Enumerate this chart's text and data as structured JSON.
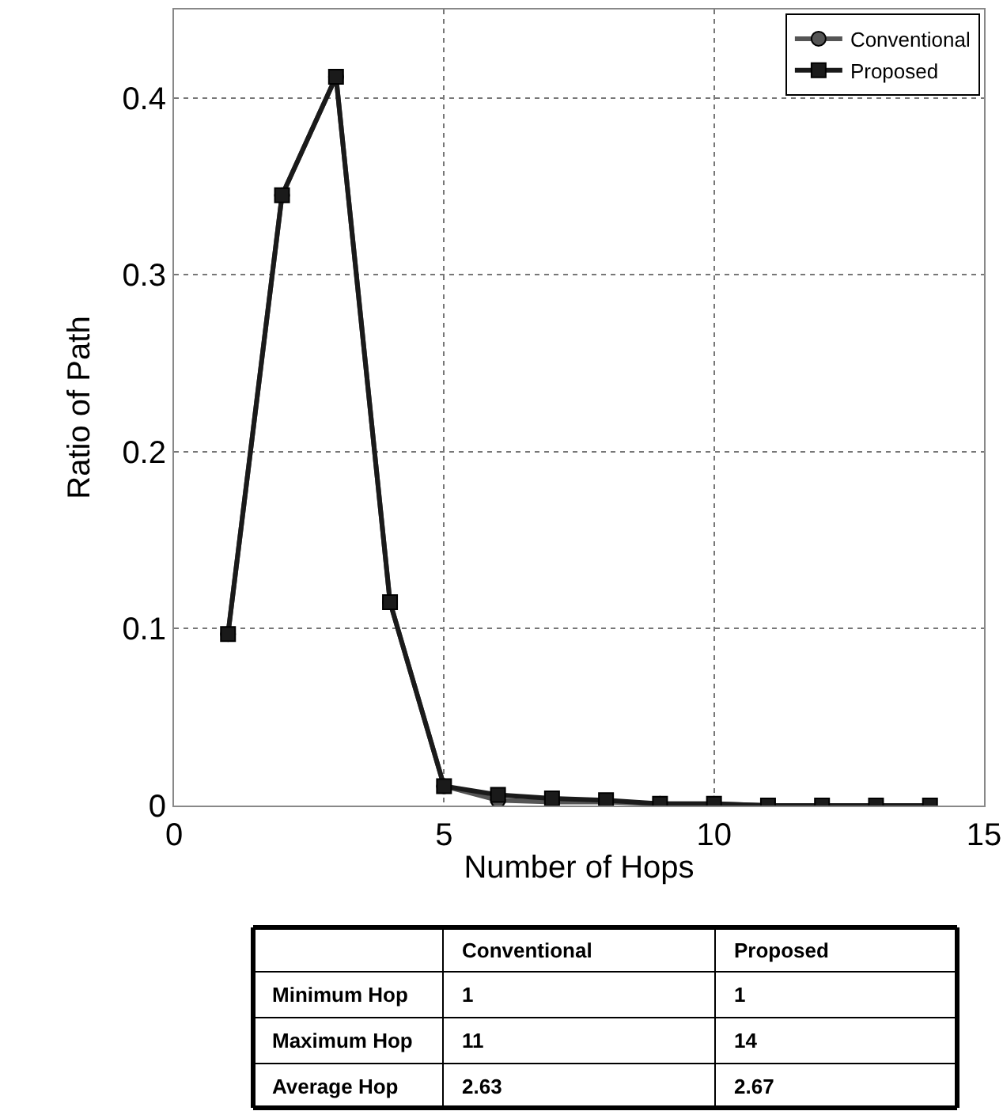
{
  "chart_data": {
    "type": "line",
    "xlabel": "Number of Hops",
    "ylabel": "Ratio of Path",
    "xlim": [
      0,
      15
    ],
    "xticks": [
      0,
      5,
      10,
      15
    ],
    "ylim": [
      0,
      0.45
    ],
    "yticks": [
      0,
      0.1,
      0.2,
      0.3,
      0.4
    ],
    "grid": true,
    "legend": "top right",
    "line_style": "solid",
    "series": [
      {
        "name": "Conventional",
        "color": "#555555",
        "marker": "circle",
        "x": [
          1,
          2,
          3,
          4,
          5,
          6,
          7,
          8,
          9,
          10,
          11
        ],
        "values": [
          0.097,
          0.345,
          0.412,
          0.115,
          0.011,
          0.003,
          0.002,
          0.002,
          0.001,
          0.001,
          0
        ]
      },
      {
        "name": "Proposed",
        "color": "#1a1a1a",
        "marker": "square",
        "x": [
          1,
          2,
          3,
          4,
          5,
          6,
          7,
          8,
          9,
          10,
          11,
          12,
          13,
          14
        ],
        "values": [
          0.097,
          0.345,
          0.412,
          0.115,
          0.011,
          0.006,
          0.004,
          0.003,
          0.001,
          0.001,
          0,
          0,
          0,
          0
        ]
      }
    ],
    "annotations": [
      "Conventional",
      "Proposed",
      "Minimum Hop",
      "1",
      "1",
      "Maximum Hop",
      "11",
      "14",
      "Average Hop",
      "2.63",
      "2.67"
    ]
  }
}
